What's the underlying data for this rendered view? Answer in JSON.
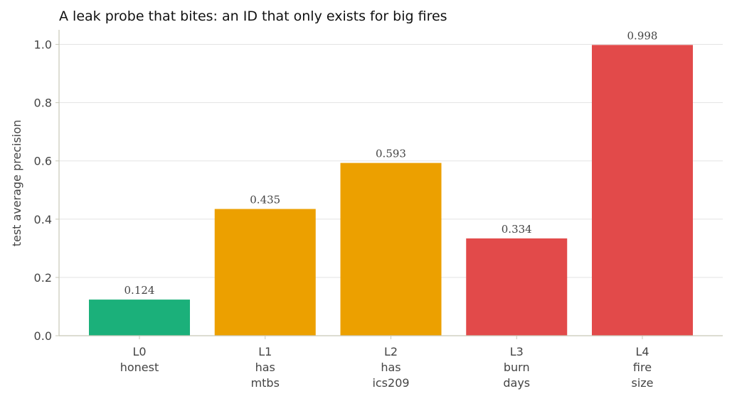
{
  "chart_data": {
    "type": "bar",
    "title": "A leak probe that bites: an ID that only exists for big fires",
    "ylabel": "test average precision",
    "xlabel": "",
    "ylim": [
      0,
      1.05
    ],
    "yticks": [
      "0.0",
      "0.2",
      "0.4",
      "0.6",
      "0.8",
      "1.0"
    ],
    "ytick_values": [
      0,
      0.2,
      0.4,
      0.6,
      0.8,
      1.0
    ],
    "grid": "horizontal",
    "categories": [
      {
        "lines": [
          "L0",
          "honest"
        ]
      },
      {
        "lines": [
          "L1",
          "has",
          "mtbs"
        ]
      },
      {
        "lines": [
          "L2",
          "has",
          "ics209"
        ]
      },
      {
        "lines": [
          "L3",
          "burn",
          "days"
        ]
      },
      {
        "lines": [
          "L4",
          "fire",
          "size"
        ]
      }
    ],
    "values": [
      0.124,
      0.435,
      0.593,
      0.334,
      0.998
    ],
    "value_labels": [
      "0.124",
      "0.435",
      "0.593",
      "0.334",
      "0.998"
    ],
    "colors": [
      "#1bb07a",
      "#eca000",
      "#eca000",
      "#e24a4a",
      "#e24a4a"
    ],
    "axis_color": "#c8c8b8",
    "grid_color": "#e3e3e3"
  }
}
